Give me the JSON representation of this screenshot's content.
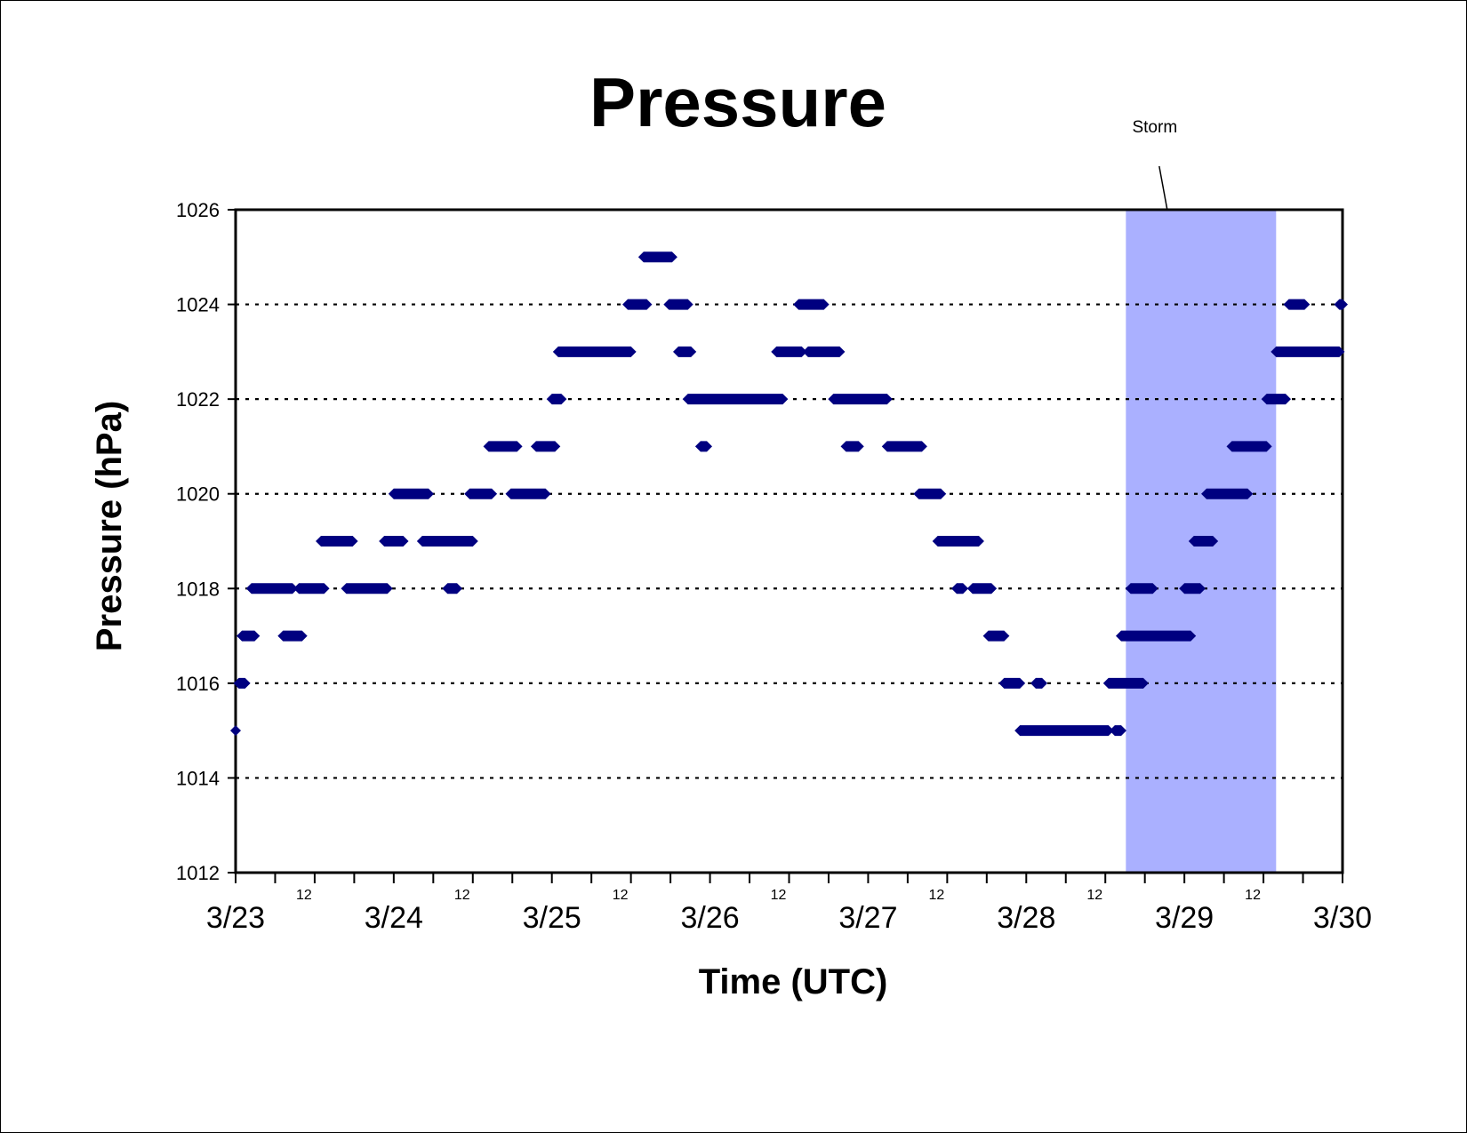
{
  "chart_data": {
    "type": "scatter",
    "title": "Pressure",
    "xlabel": "Time (UTC)",
    "ylabel": "Pressure (hPa)",
    "xlim": [
      0,
      7
    ],
    "ylim": [
      1012,
      1026
    ],
    "yticks": [
      1012,
      1014,
      1016,
      1018,
      1020,
      1022,
      1024,
      1026
    ],
    "xtick_dates": [
      "3/23",
      "3/24",
      "3/25",
      "3/26",
      "3/27",
      "3/28",
      "3/29",
      "3/30"
    ],
    "xtick_midday_label": "12",
    "grid": "horizontal dotted",
    "marker_color": "#000080",
    "band_color": "#aab0ff",
    "storm": {
      "label": "Storm",
      "start": 5.63,
      "end": 6.58
    },
    "segments": [
      [
        1015,
        0.0,
        0.0
      ],
      [
        1016,
        0.02,
        0.06
      ],
      [
        1017,
        0.04,
        0.12
      ],
      [
        1018,
        0.1,
        0.36
      ],
      [
        1017,
        0.3,
        0.42
      ],
      [
        1018,
        0.4,
        0.56
      ],
      [
        1019,
        0.54,
        0.74
      ],
      [
        1018,
        0.7,
        0.96
      ],
      [
        1019,
        0.94,
        1.06
      ],
      [
        1020,
        1.0,
        1.22
      ],
      [
        1019,
        1.18,
        1.5
      ],
      [
        1018,
        1.34,
        1.4
      ],
      [
        1020,
        1.48,
        1.62
      ],
      [
        1021,
        1.6,
        1.78
      ],
      [
        1020,
        1.74,
        1.96
      ],
      [
        1021,
        1.9,
        2.02
      ],
      [
        1022,
        2.0,
        2.06
      ],
      [
        1023,
        2.04,
        2.5
      ],
      [
        1024,
        2.48,
        2.6
      ],
      [
        1025,
        2.58,
        2.76
      ],
      [
        1024,
        2.74,
        2.86
      ],
      [
        1023,
        2.8,
        2.88
      ],
      [
        1022,
        2.86,
        3.46
      ],
      [
        1021,
        2.94,
        2.98
      ],
      [
        1023,
        3.42,
        3.58
      ],
      [
        1024,
        3.56,
        3.72
      ],
      [
        1023,
        3.62,
        3.82
      ],
      [
        1022,
        3.78,
        4.12
      ],
      [
        1021,
        3.86,
        3.94
      ],
      [
        1021,
        4.12,
        4.34
      ],
      [
        1020,
        4.32,
        4.46
      ],
      [
        1019,
        4.44,
        4.7
      ],
      [
        1018,
        4.56,
        4.6
      ],
      [
        1018,
        4.66,
        4.78
      ],
      [
        1017,
        4.76,
        4.86
      ],
      [
        1016,
        4.86,
        4.96
      ],
      [
        1015,
        4.96,
        5.52
      ],
      [
        1016,
        5.06,
        5.1
      ],
      [
        1015,
        5.56,
        5.6
      ],
      [
        1016,
        5.52,
        5.74
      ],
      [
        1017,
        5.6,
        6.04
      ],
      [
        1018,
        5.66,
        5.8
      ],
      [
        1018,
        6.0,
        6.1
      ],
      [
        1019,
        6.06,
        6.18
      ],
      [
        1020,
        6.14,
        6.4
      ],
      [
        1021,
        6.3,
        6.52
      ],
      [
        1022,
        6.52,
        6.64
      ],
      [
        1023,
        6.58,
        6.98
      ],
      [
        1024,
        6.66,
        6.76
      ],
      [
        1024,
        6.98,
        7.0
      ]
    ]
  }
}
